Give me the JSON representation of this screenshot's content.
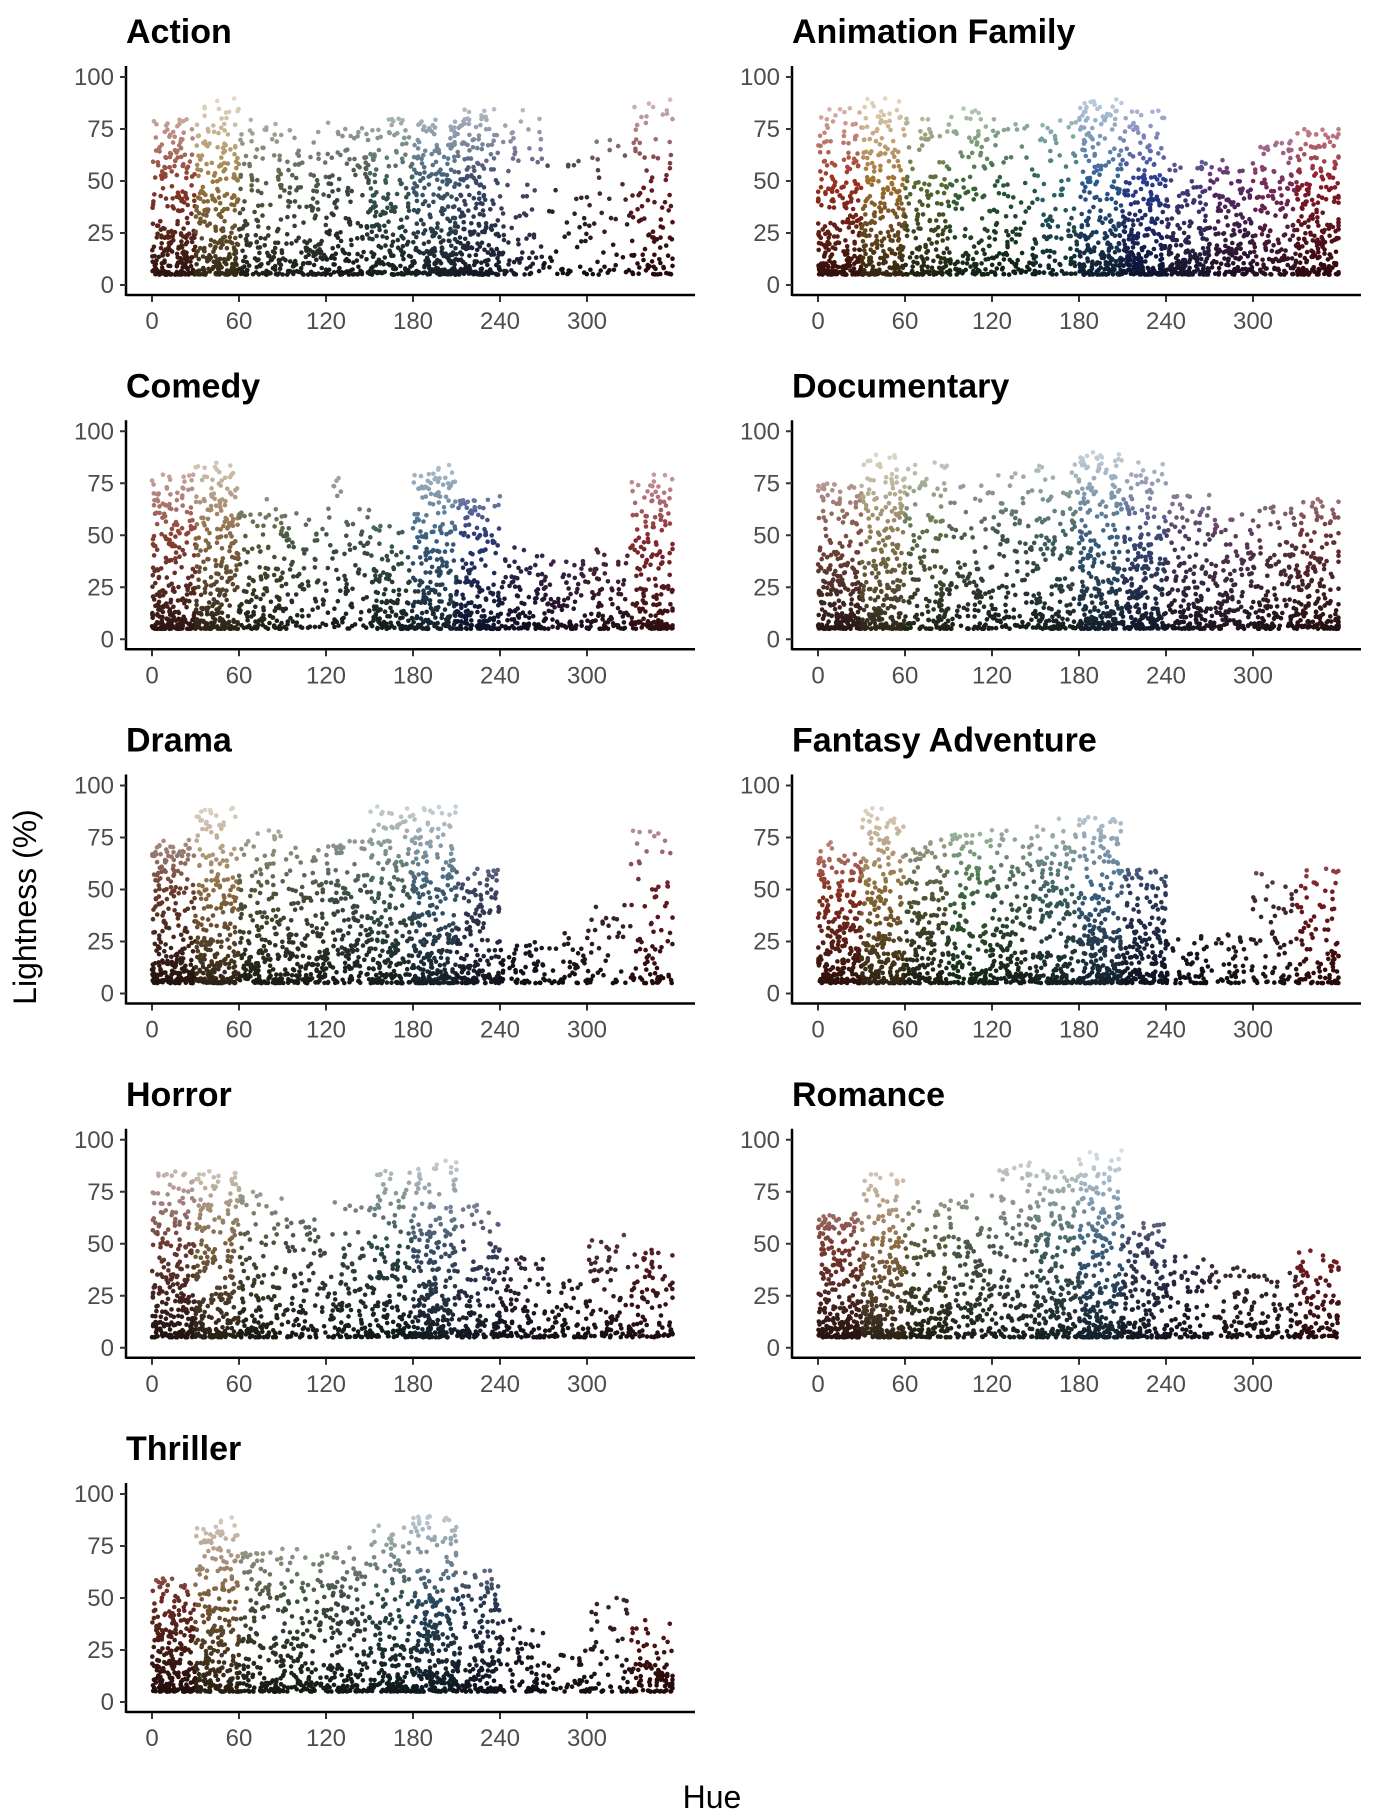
{
  "chart_data": {
    "type": "scatter",
    "xlabel": "Hue",
    "ylabel": "Lightness (%)",
    "xlim": [
      0,
      360
    ],
    "ylim": [
      0,
      100
    ],
    "x_ticks": [
      "0",
      "60",
      "120",
      "180",
      "240",
      "300"
    ],
    "y_ticks": [
      "0",
      "25",
      "50",
      "75",
      "100"
    ],
    "grid": false,
    "point_color": "each point colored by its own hue/lightness",
    "hue_bin_width": 30,
    "facets": [
      {
        "title": "Action",
        "max_lightness": [
          80,
          90,
          80,
          75,
          80,
          80,
          80,
          85,
          85,
          60,
          70,
          90
        ],
        "density": [
          1,
          1,
          0.6,
          0.5,
          0.5,
          0.7,
          1,
          0.9,
          0.3,
          0.15,
          0.15,
          0.4
        ],
        "colors": [
          "#8b3a2a",
          "#9a7a40",
          "#5a5f45",
          "#4f5a4c",
          "#3f4a42",
          "#3a5a55",
          "#3d5a70",
          "#3a4a6a",
          "#4a4a70",
          "#3a2a3a",
          "#4a2a35",
          "#6a1a22"
        ]
      },
      {
        "title": "Animation Family",
        "max_lightness": [
          85,
          90,
          80,
          85,
          80,
          80,
          90,
          85,
          60,
          60,
          70,
          75
        ],
        "density": [
          1,
          1,
          0.6,
          0.5,
          0.4,
          0.4,
          1,
          1,
          0.7,
          0.6,
          0.6,
          0.9
        ],
        "colors": [
          "#9a3020",
          "#a07030",
          "#5a6a30",
          "#3a6a3a",
          "#2a5a3a",
          "#2a6a70",
          "#2a5a90",
          "#2a3a90",
          "#4a3a80",
          "#5a2a6a",
          "#7a2a5a",
          "#8a1a2a"
        ]
      },
      {
        "title": "Comedy",
        "max_lightness": [
          80,
          85,
          70,
          65,
          80,
          55,
          85,
          70,
          45,
          40,
          45,
          80
        ],
        "density": [
          1,
          1,
          0.5,
          0.3,
          0.3,
          0.5,
          0.9,
          0.7,
          0.35,
          0.3,
          0.3,
          0.7
        ],
        "colors": [
          "#8a4035",
          "#8a6a45",
          "#5a5a3a",
          "#4a5a48",
          "#3f504a",
          "#3a5a55",
          "#3a6080",
          "#2a3a7a",
          "#3a2a60",
          "#4a2a55",
          "#5a2a45",
          "#8a2a30"
        ]
      },
      {
        "title": "Documentary",
        "max_lightness": [
          75,
          90,
          85,
          75,
          80,
          85,
          90,
          85,
          70,
          60,
          65,
          70
        ],
        "density": [
          1,
          1,
          0.6,
          0.4,
          0.4,
          0.6,
          1,
          0.9,
          0.6,
          0.5,
          0.5,
          0.7
        ],
        "colors": [
          "#7a4a40",
          "#8a7a50",
          "#5a6a45",
          "#4a5a4a",
          "#3f5550",
          "#3f6060",
          "#3a6080",
          "#3a4a7a",
          "#4a3a60",
          "#5a3a5a",
          "#5a3545",
          "#6a3035"
        ]
      },
      {
        "title": "Drama",
        "max_lightness": [
          75,
          90,
          80,
          70,
          75,
          90,
          90,
          60,
          25,
          30,
          45,
          80
        ],
        "density": [
          1,
          1,
          0.7,
          0.6,
          0.6,
          0.8,
          1,
          0.6,
          0.2,
          0.15,
          0.15,
          0.3
        ],
        "colors": [
          "#6a3a2a",
          "#8a6a40",
          "#505538",
          "#4a5040",
          "#3f5045",
          "#3a5a55",
          "#3a5a70",
          "#3a4060",
          "#2a2a3a",
          "#3a2a35",
          "#4a2a35",
          "#6a1a22"
        ]
      },
      {
        "title": "Fantasy Adventure",
        "max_lightness": [
          75,
          90,
          75,
          80,
          80,
          85,
          85,
          60,
          30,
          30,
          60,
          60
        ],
        "density": [
          1,
          1,
          0.7,
          0.6,
          0.6,
          0.7,
          1,
          0.7,
          0.2,
          0.15,
          0.25,
          0.4
        ],
        "colors": [
          "#8a3020",
          "#8a6a35",
          "#505a35",
          "#3a6a3a",
          "#3a5a45",
          "#3a6060",
          "#3a6080",
          "#2a3a60",
          "#2a2a40",
          "#3a2a35",
          "#4a2a35",
          "#7a1a20"
        ]
      },
      {
        "title": "Horror",
        "max_lightness": [
          85,
          85,
          75,
          65,
          75,
          85,
          90,
          70,
          45,
          35,
          55,
          50
        ],
        "density": [
          1,
          0.9,
          0.5,
          0.35,
          0.4,
          0.6,
          0.9,
          0.5,
          0.3,
          0.25,
          0.3,
          0.35
        ],
        "colors": [
          "#6a3a30",
          "#7a6040",
          "#4a5038",
          "#3f4a3f",
          "#3a4a45",
          "#2a4a48",
          "#3a5068",
          "#3a4060",
          "#3a2a45",
          "#3a2a35",
          "#4a2a35",
          "#5a2028"
        ]
      },
      {
        "title": "Romance",
        "max_lightness": [
          65,
          85,
          70,
          75,
          90,
          85,
          95,
          60,
          45,
          40,
          40,
          50
        ],
        "density": [
          1,
          1,
          0.6,
          0.5,
          0.5,
          0.8,
          1,
          0.6,
          0.3,
          0.25,
          0.25,
          0.4
        ],
        "colors": [
          "#7a3a30",
          "#8a6a45",
          "#5a5a3a",
          "#4a5a48",
          "#4a5a50",
          "#3f6060",
          "#3a6080",
          "#3a4060",
          "#3a3050",
          "#4a3040",
          "#4a3040",
          "#7a2025"
        ]
      },
      {
        "title": "Thriller",
        "max_lightness": [
          60,
          90,
          75,
          75,
          75,
          85,
          90,
          65,
          40,
          25,
          50,
          40
        ],
        "density": [
          1,
          1,
          0.6,
          0.5,
          0.6,
          0.7,
          1,
          0.6,
          0.25,
          0.15,
          0.2,
          0.35
        ],
        "colors": [
          "#6a2a20",
          "#7a5a35",
          "#4a5038",
          "#3a5038",
          "#3a4a40",
          "#2a4a48",
          "#2a4a60",
          "#2a3a55",
          "#2a2a40",
          "#3a2a35",
          "#3a2530",
          "#6a1a1a"
        ]
      }
    ]
  }
}
